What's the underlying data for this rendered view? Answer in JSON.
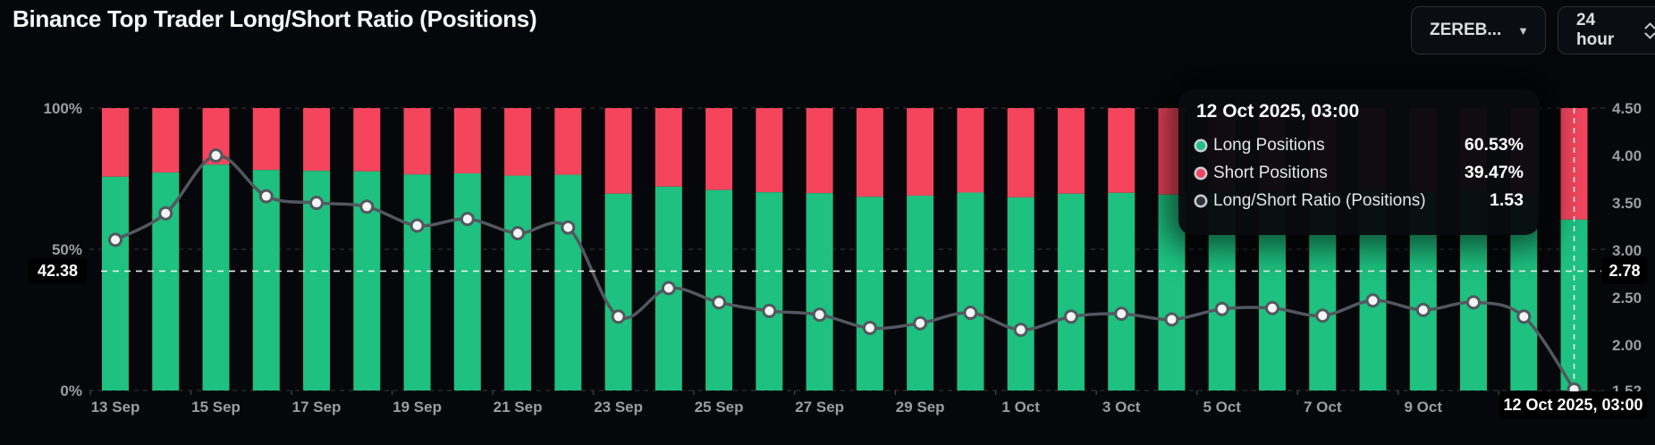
{
  "header": {
    "title": "Binance Top Trader Long/Short Ratio (Positions)",
    "symbol_select": {
      "label": "ZEREB...",
      "caret_icon": "▾"
    },
    "interval_select": {
      "label": "24 hour"
    }
  },
  "colors": {
    "long": "#1ec17f",
    "short": "#f4455d",
    "ratio_line": "#53575f",
    "dot_fill": "#f4f5f6",
    "grid": "#2c3036",
    "axis_text": "#9b9ea4",
    "crosshair": "#e9ebee",
    "background": "#05070a"
  },
  "chart_data": {
    "type": "bar",
    "title": "Binance Top Trader Long/Short Ratio (Positions)",
    "categories": [
      "13 Sep",
      "14 Sep",
      "15 Sep",
      "16 Sep",
      "17 Sep",
      "18 Sep",
      "19 Sep",
      "20 Sep",
      "21 Sep",
      "22 Sep",
      "23 Sep",
      "24 Sep",
      "25 Sep",
      "26 Sep",
      "27 Sep",
      "28 Sep",
      "29 Sep",
      "30 Sep",
      "1 Oct",
      "2 Oct",
      "3 Oct",
      "4 Oct",
      "5 Oct",
      "6 Oct",
      "7 Oct",
      "8 Oct",
      "9 Oct",
      "10 Oct",
      "11 Oct",
      "12 Oct"
    ],
    "series": [
      {
        "name": "Long Positions",
        "kind": "stacked-bar",
        "unit": "%",
        "color": "#1ec17f",
        "values": [
          75.7,
          77.2,
          80.0,
          78.1,
          77.8,
          77.6,
          76.5,
          76.9,
          76.1,
          76.4,
          69.7,
          72.2,
          71.0,
          70.2,
          69.9,
          68.6,
          69.0,
          70.1,
          68.4,
          69.7,
          70.0,
          69.4,
          70.4,
          70.5,
          69.8,
          71.2,
          70.3,
          71.0,
          69.7,
          60.53
        ]
      },
      {
        "name": "Short Positions",
        "kind": "stacked-bar",
        "unit": "%",
        "color": "#f4455d",
        "values": [
          24.3,
          22.8,
          20.0,
          21.9,
          22.2,
          22.4,
          23.5,
          23.1,
          23.9,
          23.6,
          30.3,
          27.8,
          29.0,
          29.8,
          30.1,
          31.4,
          31.0,
          29.9,
          31.6,
          30.3,
          30.0,
          30.6,
          29.6,
          29.5,
          30.2,
          28.8,
          29.7,
          29.0,
          30.3,
          39.47
        ]
      },
      {
        "name": "Long/Short Ratio (Positions)",
        "kind": "line",
        "axis": "right",
        "color": "#53575f",
        "values": [
          3.11,
          3.39,
          4.0,
          3.57,
          3.5,
          3.46,
          3.26,
          3.33,
          3.18,
          3.24,
          2.3,
          2.6,
          2.45,
          2.36,
          2.32,
          2.18,
          2.23,
          2.34,
          2.16,
          2.3,
          2.33,
          2.27,
          2.38,
          2.39,
          2.31,
          2.47,
          2.37,
          2.45,
          2.3,
          1.53
        ]
      }
    ],
    "left_axis": {
      "range": [
        0,
        100
      ],
      "ticks": [
        {
          "label": "100%",
          "value": 100
        },
        {
          "label": "50%",
          "value": 50
        },
        {
          "label": "0%",
          "value": 0
        }
      ]
    },
    "right_axis": {
      "range": [
        1.52,
        4.5
      ],
      "ticks": [
        "4.50",
        "4.00",
        "3.50",
        "3.00",
        "2.50",
        "2.00",
        "1.52"
      ]
    },
    "x_tick_labels": [
      "13 Sep",
      "15 Sep",
      "17 Sep",
      "19 Sep",
      "21 Sep",
      "23 Sep",
      "25 Sep",
      "27 Sep",
      "29 Sep",
      "1 Oct",
      "3 Oct",
      "5 Oct",
      "7 Oct",
      "9 Oct"
    ],
    "grid": "dashed-horizontal",
    "legend_position": "none",
    "current_value": {
      "left_label": "42.38",
      "right_label": "2.78",
      "ratio": 2.78
    },
    "crosshair": {
      "index": 29,
      "x_label": "12 Oct 2025, 03:00"
    }
  },
  "tooltip": {
    "title": "12 Oct 2025, 03:00",
    "rows": [
      {
        "label": "Long Positions",
        "value": "60.53%",
        "marker": "long"
      },
      {
        "label": "Short Positions",
        "value": "39.47%",
        "marker": "short"
      },
      {
        "label": "Long/Short Ratio (Positions)",
        "value": "1.53",
        "marker": "ratio"
      }
    ]
  }
}
